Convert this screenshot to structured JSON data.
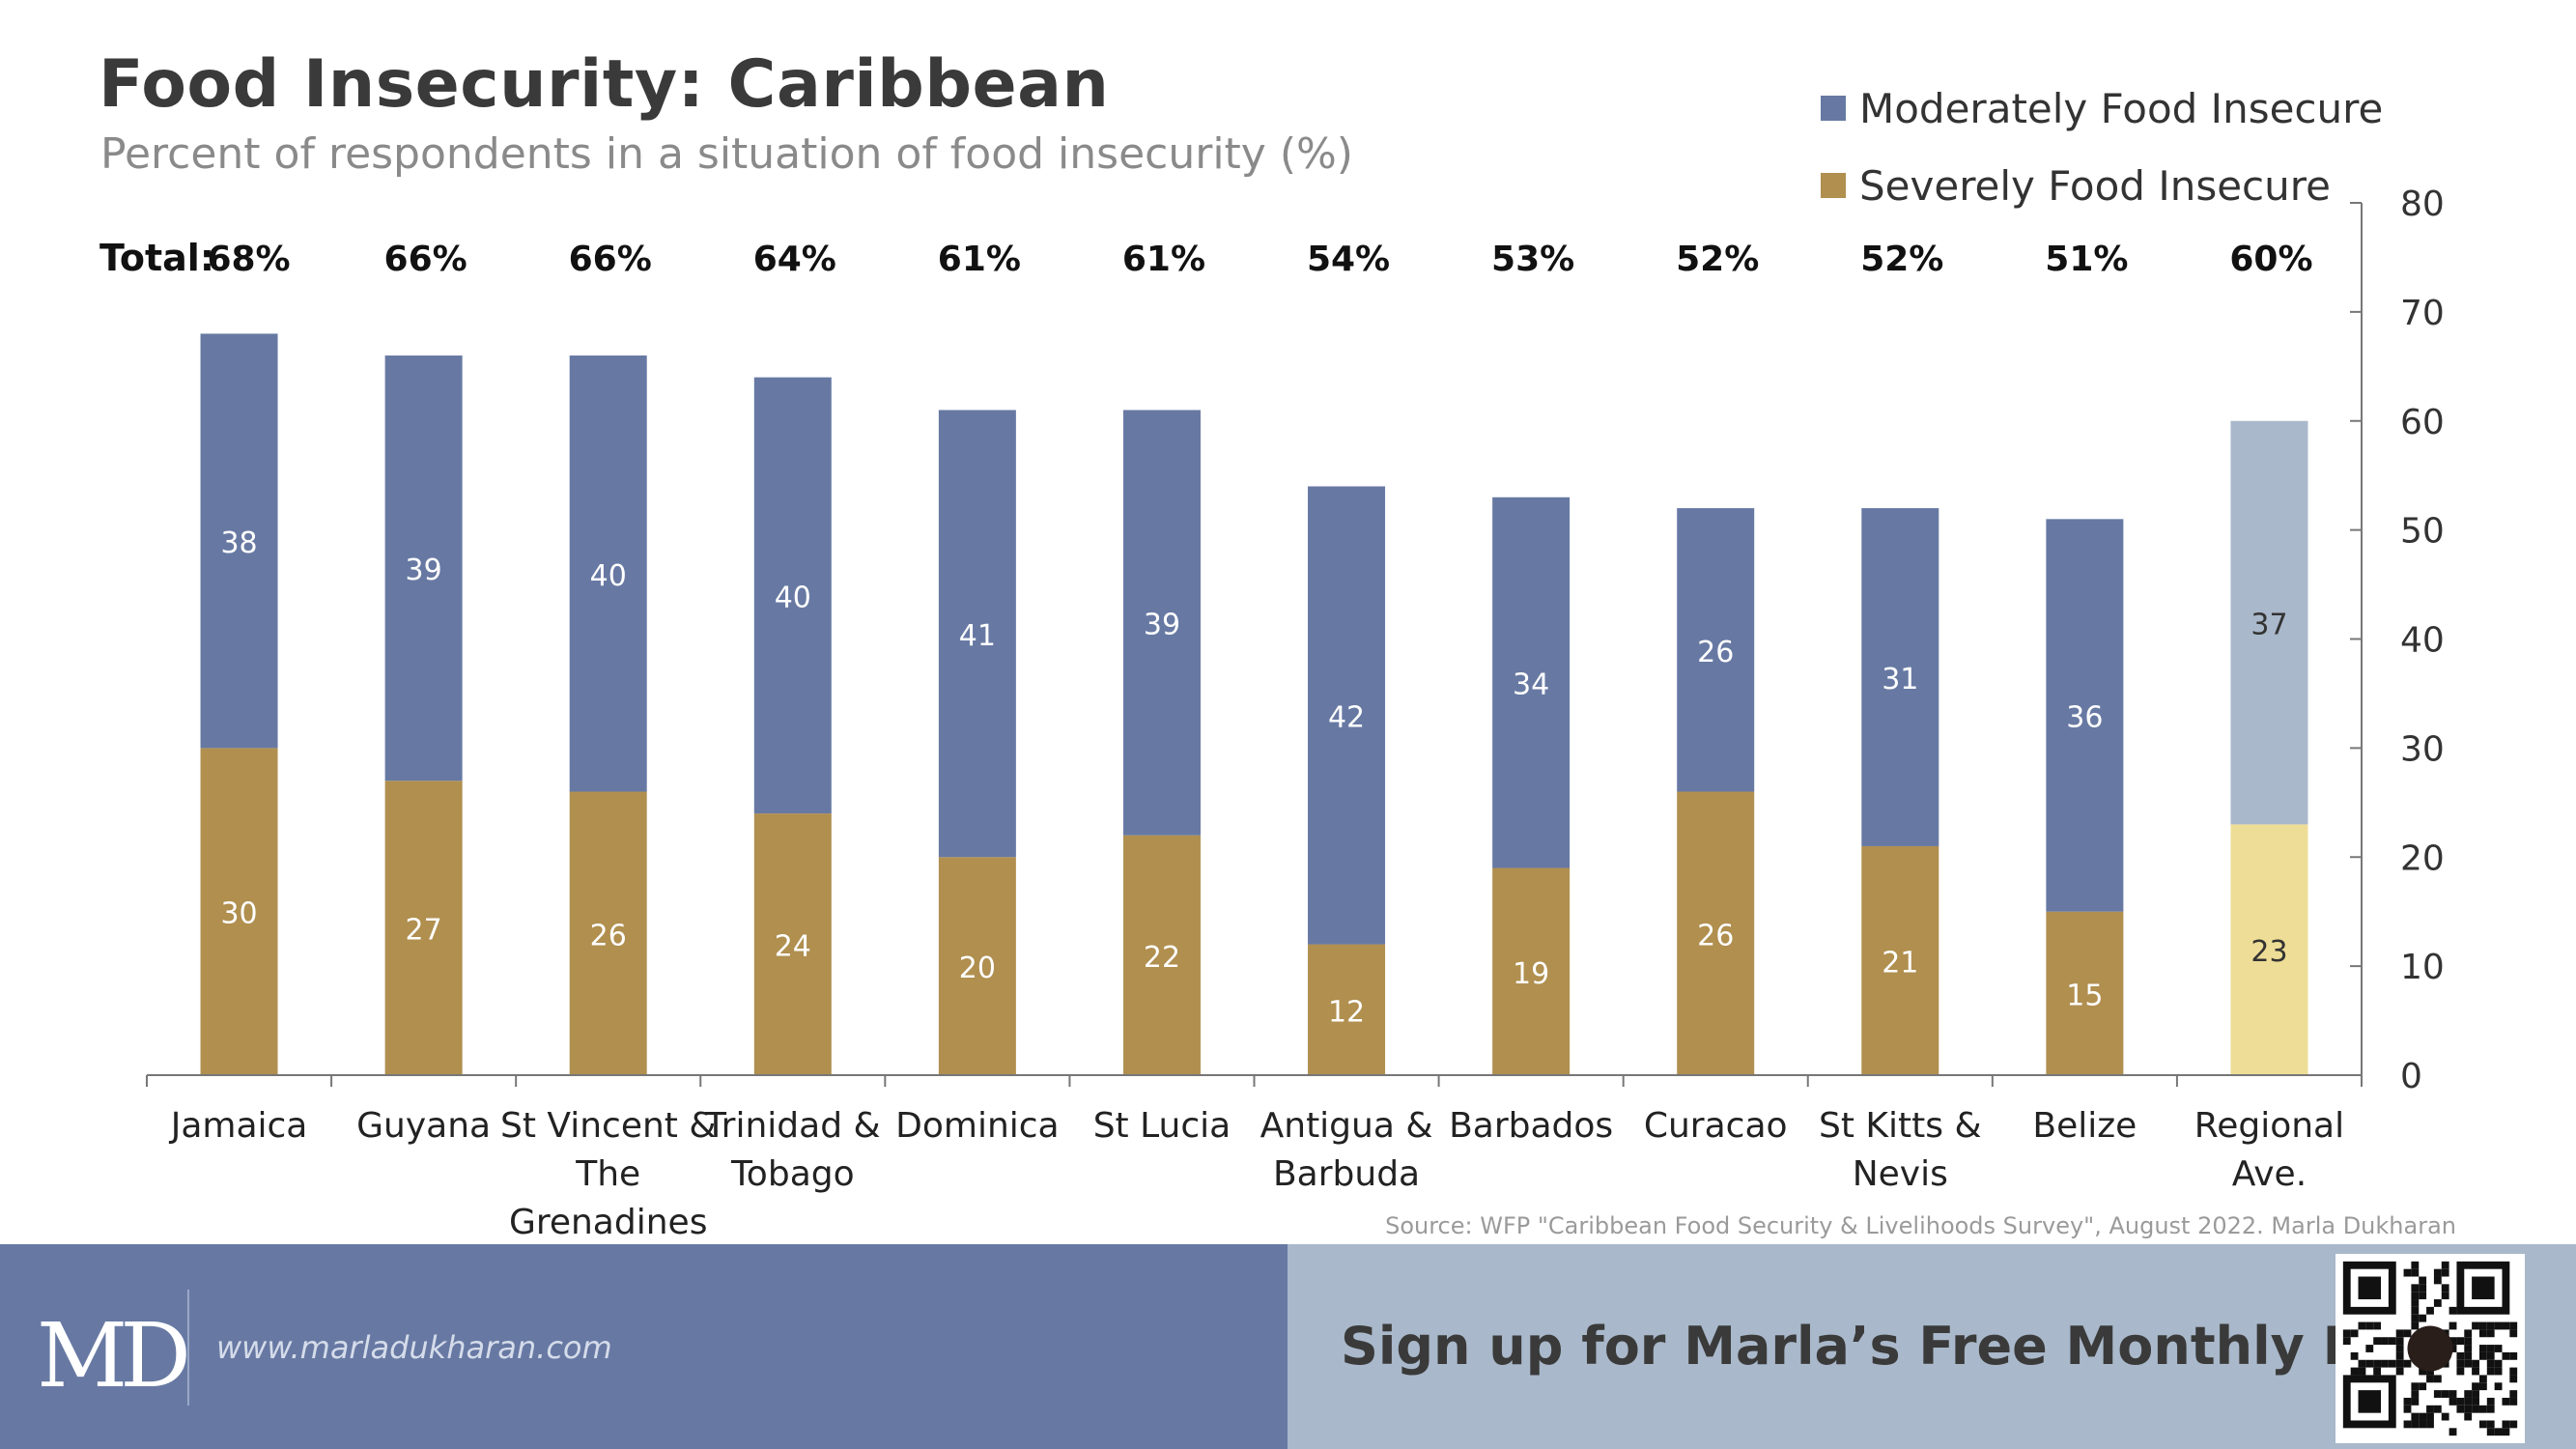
{
  "header": {
    "title": "Food Insecurity: Caribbean",
    "subtitle": "Percent of respondents in a situation of food insecurity (%)"
  },
  "totals_label": "Total:",
  "chart_data": {
    "type": "bar",
    "stacked": true,
    "categories": [
      "Jamaica",
      "Guyana",
      "St Vincent & The Grenadines",
      "Trinidad & Tobago",
      "Dominica",
      "St Lucia",
      "Antigua & Barbuda",
      "Barbados",
      "Curacao",
      "St Kitts & Nevis",
      "Belize",
      "Regional Ave."
    ],
    "category_lines": [
      [
        "Jamaica"
      ],
      [
        "Guyana"
      ],
      [
        "St Vincent &",
        "The",
        "Grenadines"
      ],
      [
        "Trinidad &",
        "Tobago"
      ],
      [
        "Dominica"
      ],
      [
        "St Lucia"
      ],
      [
        "Antigua &",
        "Barbuda"
      ],
      [
        "Barbados"
      ],
      [
        "Curacao"
      ],
      [
        "St Kitts &",
        "Nevis"
      ],
      [
        "Belize"
      ],
      [
        "Regional",
        "Ave."
      ]
    ],
    "series": [
      {
        "name": "Severely Food Insecure",
        "values": [
          30,
          27,
          26,
          24,
          20,
          22,
          12,
          19,
          26,
          21,
          15,
          23
        ]
      },
      {
        "name": "Moderately Food Insecure",
        "values": [
          38,
          39,
          40,
          40,
          41,
          39,
          42,
          34,
          26,
          31,
          36,
          37
        ]
      }
    ],
    "totals": [
      "68%",
      "66%",
      "66%",
      "64%",
      "61%",
      "61%",
      "54%",
      "53%",
      "52%",
      "52%",
      "51%",
      "60%"
    ],
    "ylim": [
      0,
      80
    ],
    "yticks": [
      "0",
      "10",
      "20",
      "30",
      "40",
      "50",
      "60",
      "70",
      "80"
    ],
    "y_axis_side": "right",
    "grid": false,
    "legend_position": "top-right"
  },
  "legend": {
    "items": [
      {
        "label": "Moderately Food Insecure",
        "color": "#6779a3"
      },
      {
        "label": "Severely Food Insecure",
        "color": "#b08f4f"
      }
    ]
  },
  "colors": {
    "moderate": "#6779a3",
    "severe": "#b08f4f",
    "regional_moderate": "#a9b8ca",
    "regional_severe": "#eedd96"
  },
  "source": "Source: WFP \"Caribbean Food Security & Livelihoods Survey\", August 2022. Marla Dukharan",
  "footer": {
    "logo": "MD",
    "website": "www.marladukharan.com",
    "cta": "Sign up for Marla’s Free Monthly Report",
    "qr_icon": "qr-code-icon"
  }
}
